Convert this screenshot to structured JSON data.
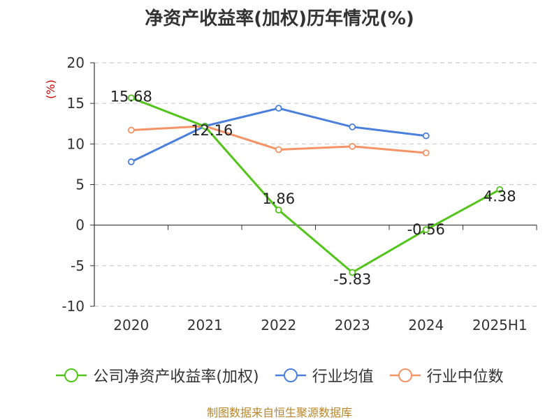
{
  "chart_data": {
    "type": "line",
    "title": "净资产收益率(加权)历年情况(%)",
    "ylabel": "(%)",
    "xlabel": "",
    "categories": [
      "2020",
      "2021",
      "2022",
      "2023",
      "2024",
      "2025H1"
    ],
    "ylim": [
      -10,
      20
    ],
    "yticks": [
      -10,
      -5,
      0,
      5,
      10,
      15,
      20
    ],
    "grid": true,
    "legend_position": "bottom",
    "series": [
      {
        "name": "公司净资产收益率(加权)",
        "color": "#52c41a",
        "values": [
          15.68,
          12.16,
          1.86,
          -5.83,
          -0.56,
          4.38
        ],
        "labels": [
          "15.68",
          "12.16",
          "1.86",
          "-5.83",
          "-0.56",
          "4.38"
        ]
      },
      {
        "name": "行业均值",
        "color": "#4a7fdc",
        "values": [
          7.8,
          12.2,
          14.4,
          12.1,
          11.0,
          null
        ]
      },
      {
        "name": "行业中位数",
        "color": "#f59366",
        "values": [
          11.7,
          12.2,
          9.3,
          9.7,
          8.9,
          null
        ]
      }
    ]
  },
  "source": "制图数据来自恒生聚源数据库"
}
